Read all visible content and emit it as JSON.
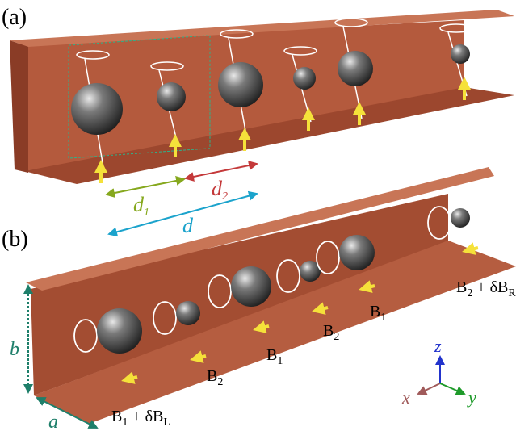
{
  "labels": {
    "panel_a": "(a)",
    "panel_b": "(b)",
    "d1": {
      "base": "d",
      "sub": "1"
    },
    "d2": {
      "base": "d",
      "sub": "2"
    },
    "d": "d",
    "b": "b",
    "a": "a"
  },
  "field_labels": [
    {
      "base": "B",
      "sub": "1",
      "extra": " + δB",
      "extra_sub": "L"
    },
    {
      "base": "B",
      "sub": "2"
    },
    {
      "base": "B",
      "sub": "1"
    },
    {
      "base": "B",
      "sub": "2"
    },
    {
      "base": "B",
      "sub": "1"
    },
    {
      "base": "B",
      "sub": "2",
      "extra": " + δB",
      "extra_sub": "R"
    }
  ],
  "axes": {
    "z": "z",
    "x": "x",
    "y": "y"
  }
}
